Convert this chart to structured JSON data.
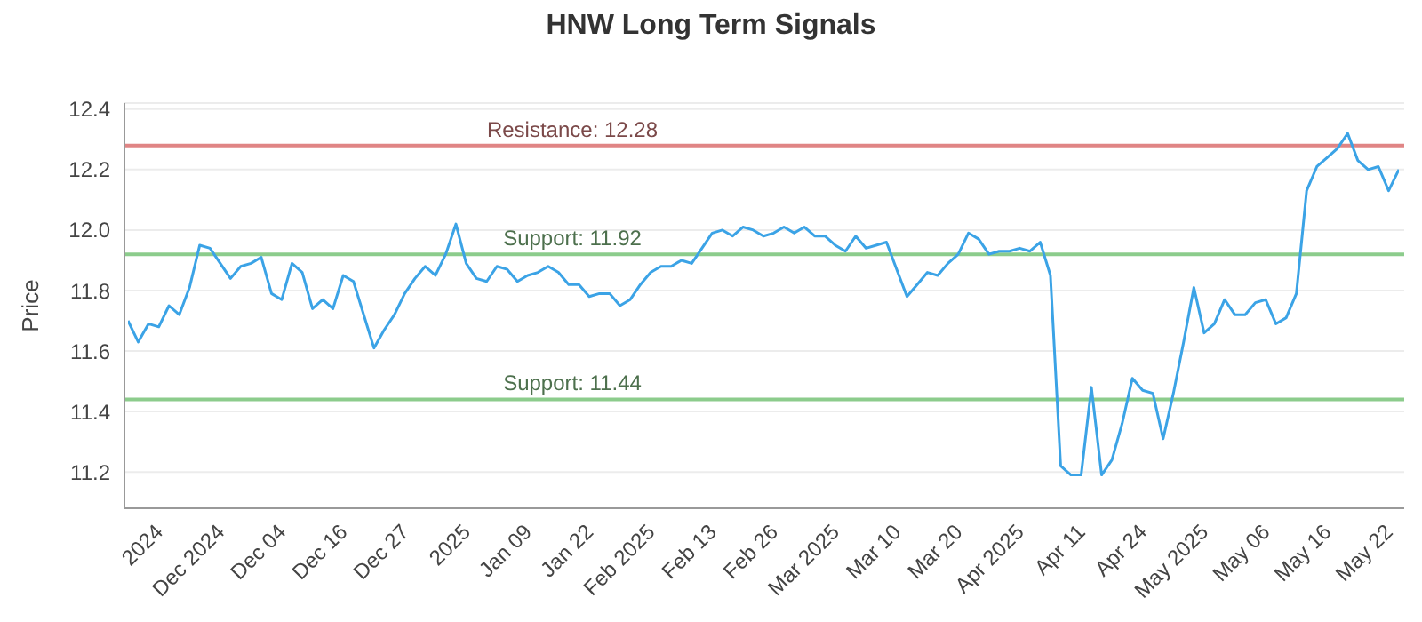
{
  "chart_data": {
    "type": "line",
    "title": "HNW Long Term Signals",
    "ylabel": "Price",
    "categories": [
      null,
      null,
      null,
      "2024",
      null,
      null,
      null,
      null,
      null,
      "Dec 2024",
      null,
      null,
      null,
      null,
      null,
      "Dec 04",
      null,
      null,
      null,
      null,
      null,
      "Dec 16",
      null,
      null,
      null,
      null,
      null,
      "Dec 27",
      null,
      null,
      null,
      null,
      null,
      "2025",
      null,
      null,
      null,
      null,
      null,
      "Jan 09",
      null,
      null,
      null,
      null,
      null,
      "Jan 22",
      null,
      null,
      null,
      null,
      null,
      "Feb 2025",
      null,
      null,
      null,
      null,
      null,
      "Feb 13",
      null,
      null,
      null,
      null,
      null,
      "Feb 26",
      null,
      null,
      null,
      null,
      null,
      "Mar 2025",
      null,
      null,
      null,
      null,
      null,
      "Mar 10",
      null,
      null,
      null,
      null,
      null,
      "Mar 20",
      null,
      null,
      null,
      null,
      null,
      "Apr 2025",
      null,
      null,
      null,
      null,
      null,
      "Apr 11",
      null,
      null,
      null,
      null,
      null,
      "Apr 24",
      null,
      null,
      null,
      null,
      null,
      "May 2025",
      null,
      null,
      null,
      null,
      null,
      "May 06",
      null,
      null,
      null,
      null,
      null,
      "May 16",
      null,
      null,
      null,
      null,
      null,
      "May 22",
      null
    ],
    "series": [
      {
        "color": "#3ba3e6",
        "values": [
          11.7,
          11.63,
          11.69,
          11.68,
          11.75,
          11.72,
          11.81,
          11.95,
          11.94,
          11.89,
          11.84,
          11.88,
          11.89,
          11.91,
          11.79,
          11.77,
          11.89,
          11.86,
          11.74,
          11.77,
          11.74,
          11.85,
          11.83,
          11.72,
          11.61,
          11.67,
          11.72,
          11.79,
          11.84,
          11.88,
          11.85,
          11.92,
          12.02,
          11.89,
          11.84,
          11.83,
          11.88,
          11.87,
          11.83,
          11.85,
          11.86,
          11.88,
          11.86,
          11.82,
          11.82,
          11.78,
          11.79,
          11.79,
          11.75,
          11.77,
          11.82,
          11.86,
          11.88,
          11.88,
          11.9,
          11.89,
          11.94,
          11.99,
          12.0,
          11.98,
          12.01,
          12.0,
          11.98,
          11.99,
          12.01,
          11.99,
          12.01,
          11.98,
          11.98,
          11.95,
          11.93,
          11.98,
          11.94,
          11.95,
          11.96,
          11.87,
          11.78,
          11.82,
          11.86,
          11.85,
          11.89,
          11.92,
          11.99,
          11.97,
          11.92,
          11.93,
          11.93,
          11.94,
          11.93,
          11.96,
          11.85,
          11.22,
          11.19,
          11.19,
          11.48,
          11.19,
          11.24,
          11.36,
          11.51,
          11.47,
          11.46,
          11.31,
          11.46,
          11.63,
          11.81,
          11.66,
          11.69,
          11.77,
          11.72,
          11.72,
          11.76,
          11.77,
          11.69,
          11.71,
          11.79,
          12.13,
          12.21,
          12.24,
          12.27,
          12.32,
          12.23,
          12.2,
          12.21,
          12.13,
          12.2
        ]
      }
    ],
    "ylim": [
      11.08,
      12.42
    ],
    "yticks": [
      11.2,
      11.4,
      11.6,
      11.8,
      {
        "value": 12,
        "label": "12.0"
      },
      12.2,
      12.4
    ],
    "ref_lines": [
      {
        "axis": "y",
        "value": 12.28,
        "label": "Resistance: 12.28",
        "color": "#e08585"
      },
      {
        "axis": "y",
        "value": 11.92,
        "label": "Support: 11.92",
        "color": "#8ccc8c"
      },
      {
        "axis": "y",
        "value": 11.44,
        "label": "Support: 11.44",
        "color": "#8ccc8c"
      }
    ],
    "grid": "y",
    "legend": false,
    "marker": "none",
    "line_style": "solid"
  }
}
